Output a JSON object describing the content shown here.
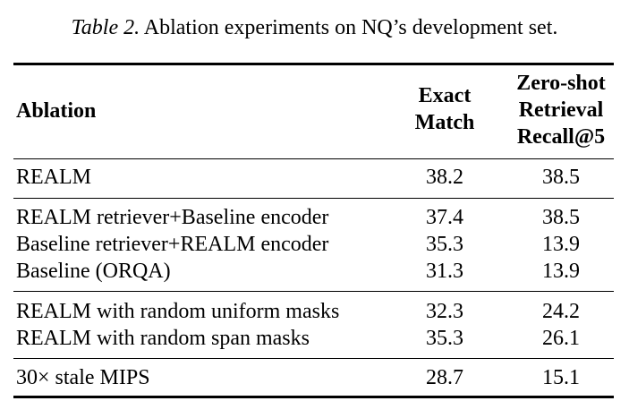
{
  "caption": {
    "label": "Table 2.",
    "text": "Ablation experiments on NQ’s development set."
  },
  "header": {
    "ablation": "Ablation",
    "exact_match": [
      "Exact",
      "Match"
    ],
    "zero_shot": [
      "Zero-shot",
      "Retrieval",
      "Recall@5"
    ]
  },
  "rows": [
    {
      "name": "REALM",
      "exact_match": "38.2",
      "recall": "38.5"
    },
    {
      "name": "REALM retriever+Baseline encoder",
      "exact_match": "37.4",
      "recall": "38.5"
    },
    {
      "name": "Baseline retriever+REALM encoder",
      "exact_match": "35.3",
      "recall": "13.9"
    },
    {
      "name": "Baseline (ORQA)",
      "exact_match": "31.3",
      "recall": "13.9"
    },
    {
      "name": "REALM with random uniform masks",
      "exact_match": "32.3",
      "recall": "24.2"
    },
    {
      "name": "REALM with random span masks",
      "exact_match": "35.3",
      "recall": "26.1"
    },
    {
      "name": "30× stale MIPS",
      "exact_match": "28.7",
      "recall": "15.1"
    }
  ]
}
